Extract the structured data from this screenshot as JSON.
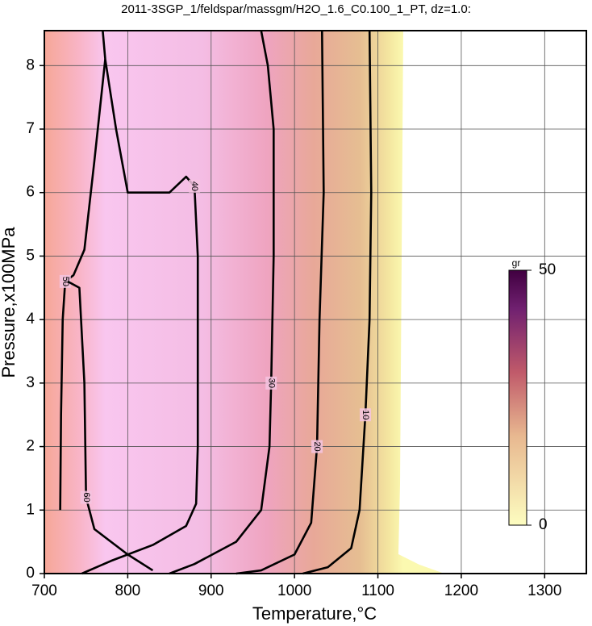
{
  "chart_data": {
    "type": "contour",
    "title": "2011-3SGP_1/feldspar/massgm/H2O_1.6_C0.100_1_PT, dz=1.0:",
    "xlabel": "Temperature,°C",
    "ylabel": "Pressure,x100MPa",
    "xlim": [
      700,
      1350
    ],
    "xticks": [
      700,
      800,
      900,
      1000,
      1100,
      1200,
      1300
    ],
    "ylim": [
      0,
      8.55
    ],
    "yticks": [
      0,
      1,
      2,
      3,
      4,
      5,
      6,
      7,
      8
    ],
    "grid": true,
    "contours": [
      {
        "level": 10,
        "x": [
          1090,
          1092,
          1090,
          1085,
          1078,
          1068,
          1040,
          1010
        ],
        "y": [
          8.55,
          6,
          4,
          2.5,
          1,
          0.4,
          0.1,
          0
        ]
      },
      {
        "level": 20,
        "x": [
          1033,
          1035,
          1030,
          1027,
          1020,
          1000,
          960,
          930
        ],
        "y": [
          8.55,
          6,
          4,
          2,
          0.8,
          0.3,
          0.05,
          0
        ]
      },
      {
        "level": 30,
        "x": [
          960,
          968,
          975,
          975,
          972,
          970,
          960,
          930,
          880,
          850
        ],
        "y": [
          8.55,
          8,
          7,
          5,
          3,
          2,
          1,
          0.5,
          0.15,
          0
        ]
      },
      {
        "level": 40,
        "x": [
          770,
          773,
          786,
          800,
          850,
          870,
          880,
          884,
          884,
          882,
          870,
          830,
          780,
          745
        ],
        "y": [
          8.55,
          8.1,
          7,
          6,
          6.0,
          6.25,
          6.1,
          5,
          2,
          1.1,
          0.75,
          0.45,
          0.2,
          0
        ]
      },
      {
        "level": 50,
        "x": [
          719,
          720,
          722,
          725,
          735,
          748,
          760,
          773
        ],
        "y": [
          1.0,
          2.5,
          4.0,
          4.6,
          4.7,
          5.1,
          6.5,
          8.1
        ]
      },
      {
        "level": 60,
        "x": [
          728,
          742,
          748,
          750,
          760,
          800,
          830
        ],
        "y": [
          4.6,
          4.5,
          3,
          1.2,
          0.7,
          0.3,
          0.05
        ]
      }
    ],
    "colorbar": {
      "label": "gr",
      "lim": [
        0,
        50
      ],
      "ticks": [
        0,
        50
      ]
    }
  }
}
